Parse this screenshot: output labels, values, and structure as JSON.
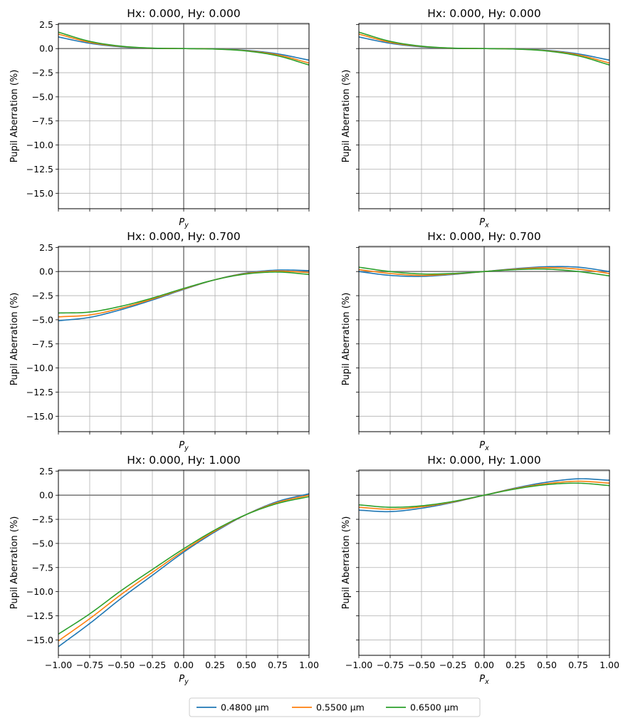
{
  "chart_data": {
    "type": "line",
    "legend": {
      "placement": "bottom-center",
      "entries": [
        {
          "label": "0.4800 µm",
          "color": "#1f77b4"
        },
        {
          "label": "0.5500 µm",
          "color": "#ff7f0e"
        },
        {
          "label": "0.6500 µm",
          "color": "#2ca02c"
        }
      ]
    },
    "shared": {
      "ylabel": "Pupil Aberration (%)",
      "xlim": [
        -1.0,
        1.0
      ],
      "ylim": [
        -16.6,
        2.6
      ],
      "xticks": [
        -1.0,
        -0.75,
        -0.5,
        -0.25,
        0.0,
        0.25,
        0.5,
        0.75,
        1.0
      ],
      "xtick_labels": [
        "−1.00",
        "−0.75",
        "−0.50",
        "−0.25",
        "0.00",
        "0.25",
        "0.50",
        "0.75",
        "1.00"
      ],
      "yticks": [
        2.5,
        0.0,
        -2.5,
        -5.0,
        -7.5,
        -10.0,
        -12.5,
        -15.0
      ],
      "ytick_labels": [
        "2.5",
        "0.0",
        "−2.5",
        "−5.0",
        "−7.5",
        "−10.0",
        "−12.5",
        "−15.0"
      ],
      "grid": true,
      "zero_lines_color": "#808080"
    },
    "panels": [
      {
        "title": "Hx: 0.000, Hy: 0.000",
        "xlabel_main": "P",
        "xlabel_sub": "y",
        "show_yticklabels": true,
        "show_xticklabels": false,
        "x": [
          -1.0,
          -0.75,
          -0.5,
          -0.25,
          0.0,
          0.25,
          0.5,
          0.75,
          1.0
        ],
        "series": [
          {
            "name": "0.4800 µm",
            "values": [
              1.2,
              0.55,
              0.18,
              0.03,
              0.0,
              -0.03,
              -0.18,
              -0.55,
              -1.2
            ]
          },
          {
            "name": "0.5500 µm",
            "values": [
              1.5,
              0.65,
              0.22,
              0.04,
              0.0,
              -0.04,
              -0.22,
              -0.65,
              -1.5
            ]
          },
          {
            "name": "0.6500 µm",
            "values": [
              1.7,
              0.75,
              0.25,
              0.05,
              0.0,
              -0.05,
              -0.25,
              -0.75,
              -1.7
            ]
          }
        ]
      },
      {
        "title": "Hx: 0.000, Hy: 0.000",
        "xlabel_main": "P",
        "xlabel_sub": "x",
        "show_yticklabels": false,
        "show_xticklabels": false,
        "x": [
          -1.0,
          -0.75,
          -0.5,
          -0.25,
          0.0,
          0.25,
          0.5,
          0.75,
          1.0
        ],
        "series": [
          {
            "name": "0.4800 µm",
            "values": [
              1.2,
              0.55,
              0.18,
              0.03,
              0.0,
              -0.03,
              -0.18,
              -0.55,
              -1.2
            ]
          },
          {
            "name": "0.5500 µm",
            "values": [
              1.5,
              0.65,
              0.22,
              0.04,
              0.0,
              -0.04,
              -0.22,
              -0.65,
              -1.5
            ]
          },
          {
            "name": "0.6500 µm",
            "values": [
              1.7,
              0.75,
              0.25,
              0.05,
              0.0,
              -0.05,
              -0.25,
              -0.75,
              -1.7
            ]
          }
        ]
      },
      {
        "title": "Hx: 0.000, Hy: 0.700",
        "xlabel_main": "P",
        "xlabel_sub": "y",
        "show_yticklabels": true,
        "show_xticklabels": false,
        "x": [
          -1.0,
          -0.75,
          -0.5,
          -0.25,
          0.0,
          0.25,
          0.5,
          0.75,
          1.0
        ],
        "series": [
          {
            "name": "0.4800 µm",
            "values": [
              -5.1,
              -4.75,
              -3.95,
              -2.95,
              -1.85,
              -0.85,
              -0.15,
              0.15,
              0.1
            ]
          },
          {
            "name": "0.5500 µm",
            "values": [
              -4.7,
              -4.5,
              -3.8,
              -2.85,
              -1.8,
              -0.85,
              -0.2,
              0.05,
              -0.1
            ]
          },
          {
            "name": "0.6500 µm",
            "values": [
              -4.3,
              -4.2,
              -3.6,
              -2.75,
              -1.75,
              -0.85,
              -0.25,
              -0.05,
              -0.3
            ]
          }
        ]
      },
      {
        "title": "Hx: 0.000, Hy: 0.700",
        "xlabel_main": "P",
        "xlabel_sub": "x",
        "show_yticklabels": false,
        "show_xticklabels": false,
        "x": [
          -1.0,
          -0.75,
          -0.5,
          -0.25,
          0.0,
          0.25,
          0.5,
          0.75,
          1.0
        ],
        "series": [
          {
            "name": "0.4800 µm",
            "values": [
              0.0,
              -0.4,
              -0.5,
              -0.3,
              0.0,
              0.3,
              0.5,
              0.45,
              0.0
            ]
          },
          {
            "name": "0.5500 µm",
            "values": [
              0.2,
              -0.2,
              -0.4,
              -0.25,
              0.0,
              0.25,
              0.4,
              0.25,
              -0.2
            ]
          },
          {
            "name": "0.6500 µm",
            "values": [
              0.45,
              0.0,
              -0.25,
              -0.2,
              0.0,
              0.2,
              0.25,
              0.0,
              -0.45
            ]
          }
        ]
      },
      {
        "title": "Hx: 0.000, Hy: 1.000",
        "xlabel_main": "P",
        "xlabel_sub": "y",
        "show_yticklabels": true,
        "show_xticklabels": true,
        "x": [
          -1.0,
          -0.75,
          -0.5,
          -0.25,
          0.0,
          0.25,
          0.5,
          0.75,
          1.0
        ],
        "series": [
          {
            "name": "0.4800 µm",
            "values": [
              -15.7,
              -13.3,
              -10.7,
              -8.3,
              -5.9,
              -3.8,
              -2.0,
              -0.65,
              0.15
            ]
          },
          {
            "name": "0.5500 µm",
            "values": [
              -15.1,
              -12.8,
              -10.3,
              -8.0,
              -5.75,
              -3.7,
              -2.0,
              -0.75,
              0.0
            ]
          },
          {
            "name": "0.6500 µm",
            "values": [
              -14.4,
              -12.3,
              -9.9,
              -7.7,
              -5.55,
              -3.6,
              -2.0,
              -0.85,
              -0.15
            ]
          }
        ]
      },
      {
        "title": "Hx: 0.000, Hy: 1.000",
        "xlabel_main": "P",
        "xlabel_sub": "x",
        "show_yticklabels": false,
        "show_xticklabels": true,
        "x": [
          -1.0,
          -0.75,
          -0.5,
          -0.25,
          0.0,
          0.25,
          0.5,
          0.75,
          1.0
        ],
        "series": [
          {
            "name": "0.4800 µm",
            "values": [
              -1.55,
              -1.7,
              -1.35,
              -0.75,
              0.0,
              0.75,
              1.35,
              1.7,
              1.55
            ]
          },
          {
            "name": "0.5500 µm",
            "values": [
              -1.25,
              -1.45,
              -1.2,
              -0.7,
              0.0,
              0.7,
              1.2,
              1.45,
              1.25
            ]
          },
          {
            "name": "0.6500 µm",
            "values": [
              -1.0,
              -1.25,
              -1.1,
              -0.65,
              0.0,
              0.65,
              1.1,
              1.25,
              1.0
            ]
          }
        ]
      }
    ]
  }
}
